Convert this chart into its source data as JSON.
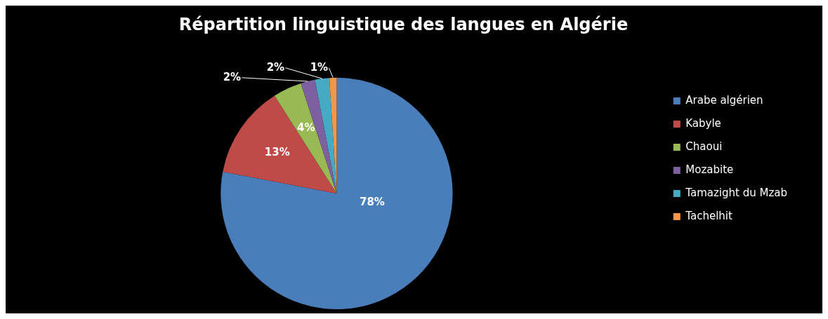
{
  "chart_data": {
    "type": "pie",
    "title": "Répartition linguistique des langues en Algérie",
    "categories": [
      "Arabe algérien",
      "Kabyle",
      "Chaoui",
      "Mozabite",
      "Tamazight du Mzab",
      "Tachelhit"
    ],
    "values": [
      78,
      13,
      4,
      2,
      2,
      1
    ],
    "value_labels": [
      "78%",
      "13%",
      "4%",
      "2%",
      "2%",
      "1%"
    ],
    "colors": [
      "#4a7ebb",
      "#be4b48",
      "#98b954",
      "#7d60a0",
      "#46aac5",
      "#f79646"
    ],
    "legend": "right"
  }
}
